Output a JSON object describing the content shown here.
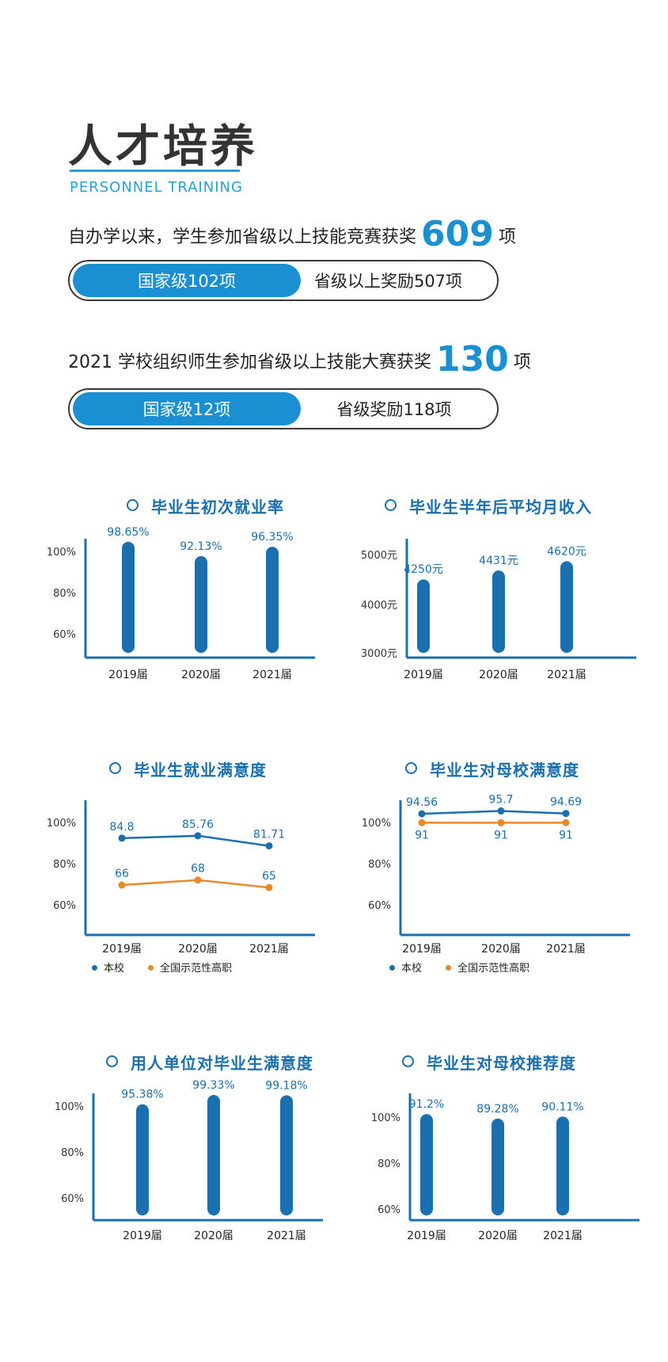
{
  "header": {
    "title": "人才培养",
    "subtitle": "PERSONNEL TRAINING"
  },
  "stats": [
    {
      "prefix": "自办学以来，学生参加省级以上技能竞赛获奖",
      "number": "609",
      "suffix": "项",
      "pill_left": "国家级102项",
      "pill_right": "省级以上奖励507项"
    },
    {
      "prefix": "2021 学校组织师生参加省级以上技能大赛获奖",
      "number": "130",
      "suffix": "项",
      "pill_left": "国家级12项",
      "pill_right": "省级奖励118项"
    }
  ],
  "colors": {
    "primary": "#1a6fae",
    "accent": "#1a8fd2",
    "orange": "#e8892c",
    "axis": "#1a6fae"
  },
  "chart_data": [
    {
      "type": "bar",
      "title": "毕业生初次就业率",
      "categories": [
        "2019届",
        "2020届",
        "2021届"
      ],
      "values": [
        98.65,
        92.13,
        96.35
      ],
      "labels": [
        "98.65%",
        "92.13%",
        "96.35%"
      ],
      "yticks": [
        "100%",
        "80%",
        "60%"
      ],
      "ylim": [
        46,
        100
      ]
    },
    {
      "type": "bar",
      "title": "毕业生半年后平均月收入",
      "categories": [
        "2019届",
        "2020届",
        "2021届"
      ],
      "values": [
        4250,
        4431,
        4620
      ],
      "labels": [
        "4250元",
        "4431元",
        "4620元"
      ],
      "yticks": [
        "5000元",
        "4000元",
        "3000元"
      ],
      "ylim": [
        2650,
        5080
      ]
    },
    {
      "type": "line",
      "title": "毕业生就业满意度",
      "categories": [
        "2019届",
        "2020届",
        "2021届"
      ],
      "series": [
        {
          "name": "本校",
          "values": [
            84.8,
            85.76,
            81.71
          ],
          "labels": [
            "84.8",
            "85.76",
            "81.71"
          ]
        },
        {
          "name": "全国示范性高职",
          "values": [
            66,
            68,
            65
          ],
          "labels": [
            "66",
            "68",
            "65"
          ]
        }
      ],
      "yticks": [
        "100%",
        "80%",
        "60%"
      ],
      "ylim": [
        46,
        100
      ],
      "legend": "bottom-left"
    },
    {
      "type": "line",
      "title": "毕业生对母校满意度",
      "categories": [
        "2019届",
        "2020届",
        "2021届"
      ],
      "series": [
        {
          "name": "本校",
          "values": [
            94.56,
            95.7,
            94.69
          ],
          "labels": [
            "94.56",
            "95.7",
            "94.69"
          ]
        },
        {
          "name": "全国示范性高职",
          "values": [
            91,
            91,
            91
          ],
          "labels": [
            "91",
            "91",
            "91"
          ]
        }
      ],
      "yticks": [
        "100%",
        "80%",
        "60%"
      ],
      "ylim": [
        46,
        100
      ],
      "legend": "bottom-left"
    },
    {
      "type": "bar",
      "title": "用人单位对毕业生满意度",
      "categories": [
        "2019届",
        "2020届",
        "2021届"
      ],
      "values": [
        95.38,
        99.33,
        99.18
      ],
      "labels": [
        "95.38%",
        "99.33%",
        "99.18%"
      ],
      "yticks": [
        "100%",
        "80%",
        "60%"
      ],
      "ylim": [
        46,
        100
      ]
    },
    {
      "type": "bar",
      "title": "毕业生对母校推荐度",
      "categories": [
        "2019届",
        "2020届",
        "2021届"
      ],
      "values": [
        91.2,
        89.28,
        90.11
      ],
      "labels": [
        "91.2%",
        "89.28%",
        "90.11%"
      ],
      "yticks": [
        "100%",
        "80%",
        "60%"
      ],
      "ylim": [
        46,
        100
      ]
    }
  ]
}
